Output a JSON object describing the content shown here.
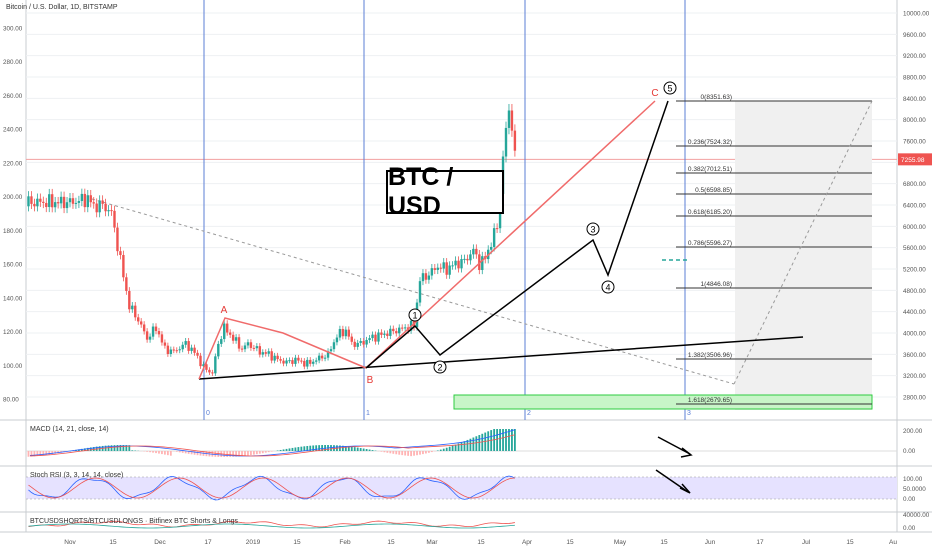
{
  "symbol": "Bitcoin / U.S. Dollar, 1D, BITSTAMP",
  "title_box": "BTC / USD",
  "price_tag": "7255.98",
  "colors": {
    "up": "#26a69a",
    "down": "#ef5350",
    "bg": "#ffffff",
    "grid": "#eef0f3",
    "panel": "#e6e2ff"
  },
  "left_axis_ticks": [
    "300.00",
    "280.00",
    "260.00",
    "240.00",
    "220.00",
    "200.00",
    "180.00",
    "160.00",
    "140.00",
    "120.00",
    "100.00",
    "80.00"
  ],
  "right_axis_ticks": [
    "10000.00",
    "9600.00",
    "9200.00",
    "8800.00",
    "8400.00",
    "8000.00",
    "7600.00",
    "7200.00",
    "6800.00",
    "6400.00",
    "6000.00",
    "5600.00",
    "5200.00",
    "4800.00",
    "4400.00",
    "4000.00",
    "3600.00",
    "3200.00",
    "2800.00"
  ],
  "time_axis": [
    "Nov",
    "15",
    "Dec",
    "17",
    "2019",
    "15",
    "Feb",
    "15",
    "Mar",
    "15",
    "Apr",
    "15",
    "May",
    "15",
    "Jun",
    "17",
    "Jul",
    "15",
    "Au"
  ],
  "cycle_labels": [
    "0",
    "1",
    "2",
    "3"
  ],
  "wave_labels": {
    "A": "A",
    "B": "B",
    "C": "C",
    "w1": "1",
    "w2": "2",
    "w3": "3",
    "w4": "4",
    "w5": "5"
  },
  "fib_levels": [
    {
      "label": "0(8351.63)"
    },
    {
      "label": "0.236(7524.32)"
    },
    {
      "label": "0.382(7012.51)"
    },
    {
      "label": "0.5(6598.85)"
    },
    {
      "label": "0.618(6185.20)"
    },
    {
      "label": "0.786(5596.27)"
    },
    {
      "label": "1(4846.08)"
    },
    {
      "label": "1.382(3506.96)"
    },
    {
      "label": "1.618(2679.65)"
    }
  ],
  "macd": {
    "label": "MACD (14, 21, close, 14)",
    "ticks": [
      "200.00",
      "0.00"
    ]
  },
  "stoch": {
    "label": "Stoch RSI (3, 3, 14, 14, close)",
    "ticks": [
      "100.00",
      "50.0000",
      "0.00"
    ]
  },
  "shorts": {
    "label": "BTCUSDSHORTS/BTCUSDLONGS · Bitfinex BTC Shorts & Longs",
    "ticks": [
      "40000.00",
      "0.00"
    ]
  },
  "chart_data": {
    "type": "candlestick",
    "title": "Bitcoin / U.S. Dollar, 1D, BITSTAMP",
    "x_range": [
      "Oct 2018",
      "Aug 2019"
    ],
    "y_range": [
      2600,
      10000
    ],
    "price_path": [
      {
        "x": "late Oct 2018",
        "y": 6450
      },
      {
        "x": "early Nov 2018",
        "y": 6500
      },
      {
        "x": "mid Nov 2018",
        "y": 5600
      },
      {
        "x": "late Nov 2018",
        "y": 4200
      },
      {
        "x": "early Dec 2018",
        "y": 3900
      },
      {
        "x": "mid Dec 2018",
        "y": 3250
      },
      {
        "x": "late Dec 2018",
        "y": 3900
      },
      {
        "x": "Jan 2019",
        "y": 3700
      },
      {
        "x": "early Feb 2019",
        "y": 3400
      },
      {
        "x": "late Feb 2019",
        "y": 4100
      },
      {
        "x": "Mar 2019",
        "y": 3850
      },
      {
        "x": "late Mar 2019",
        "y": 4100
      },
      {
        "x": "early Apr 2019",
        "y": 5000
      },
      {
        "x": "late Apr 2019",
        "y": 5300
      },
      {
        "x": "early May 2019",
        "y": 5700
      },
      {
        "x": "mid May 2019",
        "y": 8200
      },
      {
        "x": "mid May 2019",
        "y": 7256
      }
    ],
    "fib_retracement": [
      {
        "ratio": 0,
        "price": 8351.63
      },
      {
        "ratio": 0.236,
        "price": 7524.32
      },
      {
        "ratio": 0.382,
        "price": 7012.51
      },
      {
        "ratio": 0.5,
        "price": 6598.85
      },
      {
        "ratio": 0.618,
        "price": 6185.2
      },
      {
        "ratio": 0.786,
        "price": 5596.27
      },
      {
        "ratio": 1,
        "price": 4846.08
      },
      {
        "ratio": 1.382,
        "price": 3506.96
      },
      {
        "ratio": 1.618,
        "price": 2679.65
      }
    ],
    "last_price": 7255.98
  }
}
